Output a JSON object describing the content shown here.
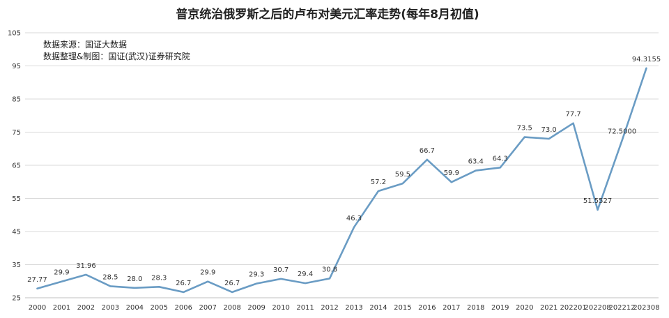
{
  "chart_data": {
    "type": "line",
    "title": "普京统治俄罗斯之后的卢布对美元汇率走势(每年8月初值)",
    "notes": [
      "数据来源：国证大数据",
      "数据整理&制图：国证(武汉)证券研究院"
    ],
    "categories": [
      "2000",
      "2001",
      "2002",
      "2003",
      "2004",
      "2005",
      "2006",
      "2007",
      "2008",
      "2009",
      "2010",
      "2011",
      "2012",
      "2013",
      "2014",
      "2015",
      "2016",
      "2017",
      "2018",
      "2019",
      "2020",
      "2021",
      "202201",
      "202208",
      "202212",
      "202308"
    ],
    "values": [
      27.77,
      29.9,
      31.96,
      28.5,
      28.0,
      28.3,
      26.7,
      29.9,
      26.7,
      29.3,
      30.7,
      29.4,
      30.8,
      46.3,
      57.2,
      59.5,
      66.7,
      59.9,
      63.4,
      64.3,
      73.5,
      73.0,
      77.7,
      51.5527,
      72.5,
      94.3155
    ],
    "data_labels": [
      "27.77",
      "29.9",
      "31.96",
      "28.5",
      "28.0",
      "28.3",
      "26.7",
      "29.9",
      "26.7",
      "29.3",
      "30.7",
      "29.4",
      "30.8",
      "46.3",
      "57.2",
      "59.5",
      "66.7",
      "59.9",
      "63.4",
      "64.3",
      "73.5",
      "73.0",
      "77.7",
      "51.5527",
      "72.5000",
      "94.3155"
    ],
    "xlabel": "",
    "ylabel": "",
    "ylim": [
      25,
      105
    ],
    "yticks": [
      25,
      35,
      45,
      55,
      65,
      75,
      85,
      95,
      105
    ],
    "grid": true,
    "legend": "none",
    "line_color": "#6a9cc4"
  }
}
